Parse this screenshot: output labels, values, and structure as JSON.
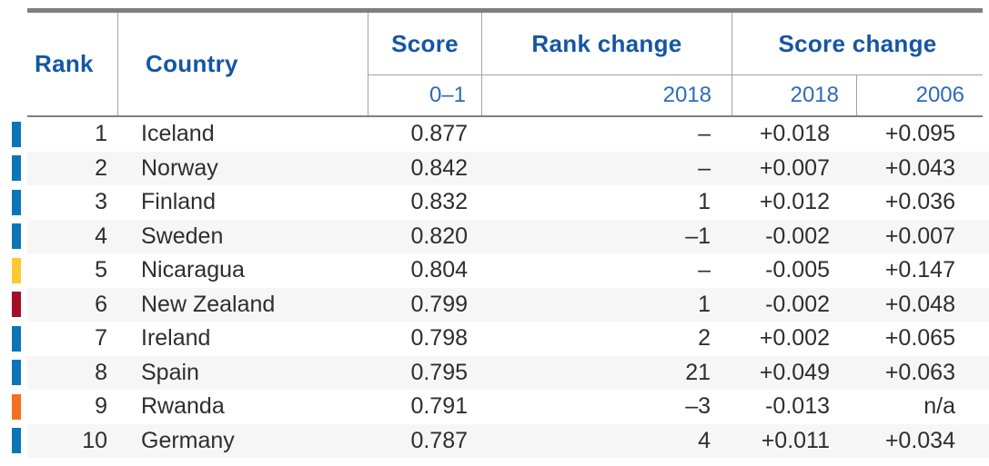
{
  "table": {
    "header": {
      "rank": "Rank",
      "country": "Country",
      "score": "Score",
      "rank_change": "Rank change",
      "score_change": "Score change",
      "score_sub": "0–1",
      "rank_change_sub": "2018",
      "score_change_sub_2018": "2018",
      "score_change_sub_2006": "2006"
    },
    "rows": [
      {
        "rank": "1",
        "country": "Iceland",
        "score": "0.877",
        "rank_change": "–",
        "score_change_2018": "+0.018",
        "score_change_2006": "+0.095",
        "region": "blue"
      },
      {
        "rank": "2",
        "country": "Norway",
        "score": "0.842",
        "rank_change": "–",
        "score_change_2018": "+0.007",
        "score_change_2006": "+0.043",
        "region": "blue"
      },
      {
        "rank": "3",
        "country": "Finland",
        "score": "0.832",
        "rank_change": "1",
        "score_change_2018": "+0.012",
        "score_change_2006": "+0.036",
        "region": "blue"
      },
      {
        "rank": "4",
        "country": "Sweden",
        "score": "0.820",
        "rank_change": "–1",
        "score_change_2018": "-0.002",
        "score_change_2006": "+0.007",
        "region": "blue"
      },
      {
        "rank": "5",
        "country": "Nicaragua",
        "score": "0.804",
        "rank_change": "–",
        "score_change_2018": "-0.005",
        "score_change_2006": "+0.147",
        "region": "yellow"
      },
      {
        "rank": "6",
        "country": "New Zealand",
        "score": "0.799",
        "rank_change": "1",
        "score_change_2018": "-0.002",
        "score_change_2006": "+0.048",
        "region": "dark_red"
      },
      {
        "rank": "7",
        "country": "Ireland",
        "score": "0.798",
        "rank_change": "2",
        "score_change_2018": "+0.002",
        "score_change_2006": "+0.065",
        "region": "blue"
      },
      {
        "rank": "8",
        "country": "Spain",
        "score": "0.795",
        "rank_change": "21",
        "score_change_2018": "+0.049",
        "score_change_2006": "+0.063",
        "region": "blue"
      },
      {
        "rank": "9",
        "country": "Rwanda",
        "score": "0.791",
        "rank_change": "–3",
        "score_change_2018": "-0.013",
        "score_change_2006": "n/a",
        "region": "orange"
      },
      {
        "rank": "10",
        "country": "Germany",
        "score": "0.787",
        "rank_change": "4",
        "score_change_2018": "+0.011",
        "score_change_2006": "+0.034",
        "region": "blue"
      }
    ]
  },
  "colors": {
    "header_text": "#1456a4",
    "subheader_text": "#2d6cb4",
    "body_text": "#2e2e2e",
    "rule_gray": "#7f7f7f",
    "grid_line_gray": "#a3a3a3",
    "row_alt_bg": "#f6f6f6",
    "region_bar": {
      "blue": "#0a76b8",
      "yellow": "#fdc930",
      "dark_red": "#a50f28",
      "orange": "#f37021"
    }
  }
}
